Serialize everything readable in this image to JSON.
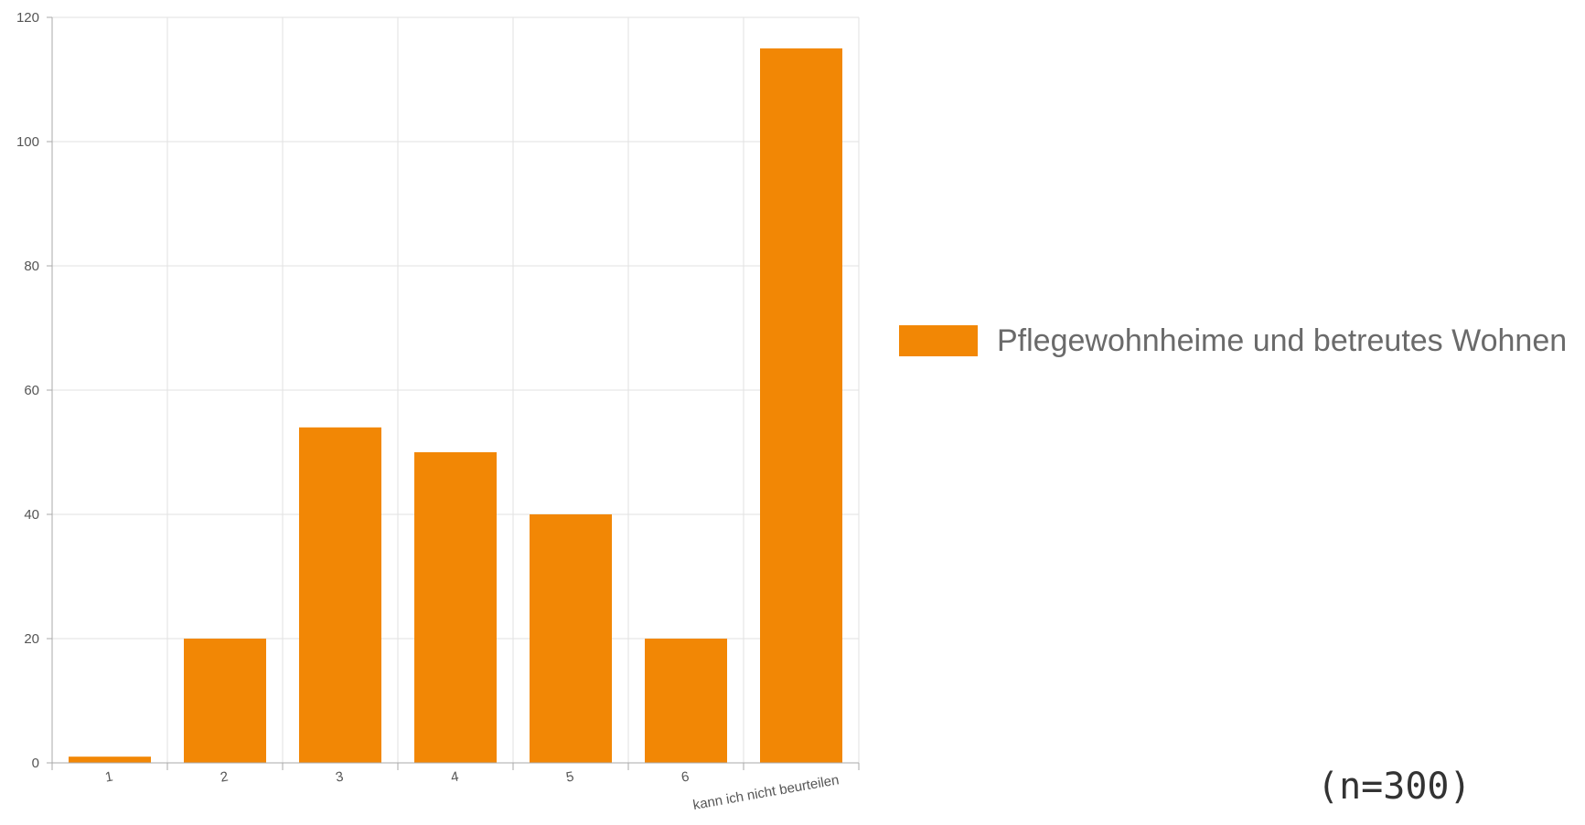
{
  "chart_data": {
    "type": "bar",
    "categories": [
      "1",
      "2",
      "3",
      "4",
      "5",
      "6",
      "kann ich nicht beurteilen"
    ],
    "series": [
      {
        "name": "Pflegewohnheime und betreutes Wohnen",
        "values": [
          1,
          20,
          54,
          50,
          40,
          20,
          115
        ],
        "color": "#f28705"
      }
    ],
    "y_ticks": [
      "0",
      "20",
      "40",
      "60",
      "80",
      "100",
      "120"
    ],
    "ylim": [
      0,
      120
    ],
    "grid": true,
    "legend_position": "right",
    "title": "",
    "xlabel": "",
    "ylabel": ""
  },
  "note": "(n=300)"
}
